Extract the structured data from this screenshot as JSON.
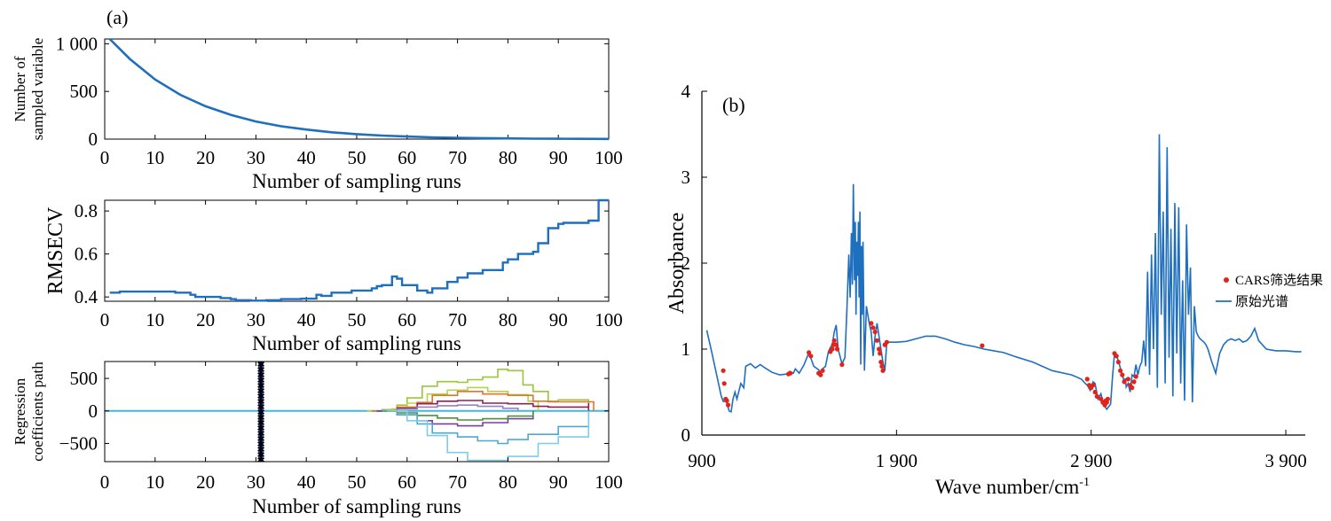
{
  "figure": {
    "panel_a_label": "(a)",
    "panel_b_label": "(b)"
  },
  "colors": {
    "main_blue": "#1f6fbf",
    "marker_red": "#e2231a",
    "star_blue": "#1a2f9c",
    "zero_line": "#3fb8e6"
  },
  "chart_data": [
    {
      "id": "a1",
      "type": "line",
      "xlabel": "Number of sampling runs",
      "ylabel_lines": [
        "Number of",
        "sampled variable"
      ],
      "xlim": [
        0,
        100
      ],
      "ylim": [
        0,
        1050
      ],
      "xticks": [
        0,
        10,
        20,
        30,
        40,
        50,
        60,
        70,
        80,
        90,
        100
      ],
      "xtick_labels": [
        "0",
        "10",
        "20",
        "30",
        "40",
        "50",
        "60",
        "70",
        "80",
        "90",
        "100"
      ],
      "yticks": [
        0,
        500,
        1000
      ],
      "ytick_labels": [
        "0",
        "500",
        "1 000"
      ],
      "series": [
        {
          "x": [
            1,
            5,
            10,
            15,
            20,
            25,
            30,
            35,
            40,
            45,
            50,
            55,
            60,
            65,
            70,
            75,
            80,
            85,
            90,
            95,
            100
          ],
          "y": [
            1050,
            840,
            625,
            465,
            345,
            255,
            185,
            135,
            100,
            72,
            52,
            37,
            27,
            19,
            14,
            10,
            7,
            5,
            4,
            3,
            2
          ]
        }
      ]
    },
    {
      "id": "a2",
      "type": "line",
      "xlabel": "Number of sampling runs",
      "ylabel": "RMSECV",
      "xlim": [
        0,
        100
      ],
      "ylim": [
        0.38,
        0.85
      ],
      "xticks": [
        0,
        10,
        20,
        30,
        40,
        50,
        60,
        70,
        80,
        90,
        100
      ],
      "xtick_labels": [
        "0",
        "10",
        "20",
        "30",
        "40",
        "50",
        "60",
        "70",
        "80",
        "90",
        "100"
      ],
      "yticks": [
        0.4,
        0.6,
        0.8
      ],
      "ytick_labels": [
        "0.4",
        "0.6",
        "0.8"
      ],
      "series": [
        {
          "x": [
            1,
            3,
            10,
            14,
            17,
            18,
            23,
            25,
            26,
            29,
            32,
            35,
            39,
            42,
            43,
            45,
            49,
            53,
            54,
            55,
            57,
            58,
            59,
            62,
            64,
            65,
            68,
            70,
            72,
            75,
            79,
            80,
            82,
            85,
            86,
            88,
            90,
            91,
            96,
            98,
            100
          ],
          "y": [
            0.42,
            0.425,
            0.425,
            0.42,
            0.41,
            0.4,
            0.395,
            0.39,
            0.385,
            0.383,
            0.385,
            0.39,
            0.392,
            0.41,
            0.405,
            0.42,
            0.43,
            0.44,
            0.45,
            0.455,
            0.495,
            0.485,
            0.455,
            0.43,
            0.42,
            0.44,
            0.47,
            0.49,
            0.51,
            0.525,
            0.56,
            0.575,
            0.6,
            0.61,
            0.65,
            0.72,
            0.74,
            0.745,
            0.755,
            0.85,
            0.85
          ]
        }
      ]
    },
    {
      "id": "a3",
      "type": "line",
      "xlabel": "Number of sampling runs",
      "ylabel_lines": [
        "Regression",
        "coefficients path"
      ],
      "xlim": [
        0,
        100
      ],
      "ylim": [
        -780,
        760
      ],
      "xticks": [
        0,
        10,
        20,
        30,
        40,
        50,
        60,
        70,
        80,
        90,
        100
      ],
      "xtick_labels": [
        "0",
        "10",
        "20",
        "30",
        "40",
        "50",
        "60",
        "70",
        "80",
        "90",
        "100"
      ],
      "yticks": [
        -500,
        0,
        500
      ],
      "ytick_labels": [
        "−500",
        "0",
        "500"
      ],
      "marker_run": 31,
      "series": [
        {
          "color": "#9bc53d",
          "x": [
            52,
            55,
            58,
            60,
            63,
            66,
            70,
            72,
            75,
            78,
            80,
            83,
            85,
            88,
            90,
            96
          ],
          "y": [
            0,
            20,
            90,
            200,
            380,
            450,
            440,
            480,
            520,
            640,
            620,
            400,
            300,
            150,
            170,
            170
          ]
        },
        {
          "color": "#b3d44a",
          "x": [
            52,
            57,
            60,
            64,
            68,
            72,
            76,
            80,
            84,
            86
          ],
          "y": [
            0,
            30,
            120,
            260,
            320,
            360,
            300,
            250,
            150,
            80
          ]
        },
        {
          "color": "#e0752f",
          "x": [
            53,
            58,
            62,
            65,
            70,
            75,
            80,
            85,
            88,
            93,
            97
          ],
          "y": [
            0,
            60,
            130,
            240,
            300,
            260,
            240,
            150,
            140,
            140,
            140
          ]
        },
        {
          "color": "#8b2252",
          "x": [
            54,
            58,
            62,
            66,
            70,
            75,
            80,
            85,
            88,
            96
          ],
          "y": [
            0,
            40,
            110,
            150,
            160,
            120,
            110,
            70,
            60,
            120
          ]
        },
        {
          "color": "#9b7fbf",
          "x": [
            55,
            58,
            62,
            66,
            70,
            74,
            79,
            82
          ],
          "y": [
            0,
            30,
            60,
            80,
            90,
            70,
            40,
            20
          ]
        },
        {
          "color": "#7b3f9e",
          "x": [
            54,
            58,
            62,
            65,
            70,
            75,
            80,
            85
          ],
          "y": [
            0,
            -60,
            -150,
            -200,
            -230,
            -180,
            -120,
            -60
          ]
        },
        {
          "color": "#4d8f3a",
          "x": [
            55,
            58,
            62,
            66,
            70,
            75,
            80,
            85
          ],
          "y": [
            0,
            -30,
            -70,
            -110,
            -140,
            -120,
            -80,
            -40
          ]
        },
        {
          "color": "#4fa8d0",
          "x": [
            55,
            58,
            62,
            65,
            70,
            74,
            78,
            80,
            84,
            90,
            96
          ],
          "y": [
            0,
            -60,
            -200,
            -340,
            -400,
            -460,
            -500,
            -440,
            -360,
            -240,
            -240
          ]
        },
        {
          "color": "#7fcce8",
          "x": [
            56,
            60,
            64,
            68,
            72,
            76,
            80,
            86,
            90,
            96
          ],
          "y": [
            0,
            -150,
            -380,
            -640,
            -760,
            -760,
            -700,
            -500,
            -400,
            -400
          ]
        }
      ]
    },
    {
      "id": "b",
      "type": "line",
      "xlabel": "Wave number/cm",
      "xlabel_sup": "-1",
      "ylabel": "Absorbance",
      "xlim": [
        900,
        4000
      ],
      "ylim": [
        0,
        4
      ],
      "xticks": [
        900,
        1900,
        2900,
        3900
      ],
      "xtick_labels": [
        "900",
        "1 900",
        "2 900",
        "3 900"
      ],
      "yticks": [
        0,
        1,
        2,
        3,
        4
      ],
      "ytick_labels": [
        "0",
        "1",
        "2",
        "3",
        "4"
      ],
      "legend": {
        "position": "right",
        "entries": [
          "CARS筛选结果",
          "原始光谱"
        ]
      },
      "spectrum": {
        "x": [
          925,
          950,
          1000,
          1010,
          1025,
          1040,
          1050,
          1060,
          1070,
          1080,
          1100,
          1115,
          1125,
          1150,
          1175,
          1200,
          1225,
          1260,
          1300,
          1340,
          1350,
          1370,
          1380,
          1400,
          1425,
          1450,
          1475,
          1500,
          1510,
          1515,
          1525,
          1535,
          1550,
          1560,
          1570,
          1580,
          1590,
          1600,
          1620,
          1635,
          1645,
          1655,
          1662,
          1668,
          1673,
          1678,
          1684,
          1688,
          1692,
          1696,
          1700,
          1704,
          1708,
          1712,
          1716,
          1720,
          1724,
          1728,
          1735,
          1745,
          1760,
          1770,
          1780,
          1790,
          1800,
          1810,
          1820,
          1830,
          1840,
          1850,
          1900,
          1950,
          2000,
          2050,
          2100,
          2150,
          2200,
          2250,
          2300,
          2350,
          2400,
          2450,
          2500,
          2600,
          2700,
          2800,
          2850,
          2870,
          2880,
          2895,
          2900,
          2910,
          2920,
          2935,
          2950,
          2965,
          2980,
          3000,
          3010,
          3020,
          3030,
          3040,
          3050,
          3060,
          3070,
          3075,
          3080,
          3090,
          3100,
          3110,
          3120,
          3130,
          3140,
          3150,
          3160,
          3170,
          3180,
          3190,
          3200,
          3210,
          3220,
          3230,
          3240,
          3250,
          3260,
          3270,
          3280,
          3290,
          3300,
          3310,
          3320,
          3330,
          3340,
          3350,
          3360,
          3370,
          3380,
          3390,
          3400,
          3410,
          3420,
          3430,
          3440,
          3450,
          3460,
          3470,
          3480,
          3490,
          3500,
          3520,
          3540,
          3560,
          3580,
          3600,
          3620,
          3640,
          3660,
          3680,
          3700,
          3720,
          3740,
          3760,
          3800,
          3850,
          3900,
          3950,
          3980
        ],
        "y": [
          1.22,
          0.97,
          0.45,
          0.39,
          0.4,
          0.28,
          0.27,
          0.42,
          0.5,
          0.42,
          0.6,
          0.55,
          0.8,
          0.83,
          0.78,
          0.82,
          0.78,
          0.73,
          0.7,
          0.71,
          0.74,
          0.72,
          0.77,
          0.72,
          0.82,
          0.96,
          0.8,
          0.76,
          0.72,
          0.76,
          0.78,
          0.8,
          0.97,
          1.02,
          1.05,
          1.2,
          1.28,
          1.0,
          0.83,
          0.9,
          1.45,
          2.1,
          1.6,
          2.35,
          1.75,
          2.92,
          1.8,
          2.48,
          1.4,
          2.25,
          1.85,
          2.48,
          1.6,
          2.6,
          0.82,
          2.2,
          1.4,
          2.25,
          0.75,
          1.5,
          1.3,
          1.2,
          0.92,
          1.15,
          1.3,
          1.15,
          1.0,
          0.85,
          0.75,
          1.08,
          1.08,
          1.09,
          1.12,
          1.15,
          1.15,
          1.12,
          1.08,
          1.05,
          1.03,
          1.0,
          0.98,
          0.96,
          0.92,
          0.85,
          0.75,
          0.7,
          0.65,
          0.6,
          0.58,
          0.52,
          0.55,
          0.62,
          0.6,
          0.42,
          0.48,
          0.35,
          0.3,
          0.36,
          0.68,
          0.95,
          0.93,
          0.86,
          0.78,
          0.7,
          0.62,
          0.66,
          0.56,
          0.6,
          0.5,
          0.7,
          0.68,
          0.82,
          0.7,
          0.8,
          0.85,
          1.1,
          0.8,
          1.9,
          0.7,
          2.1,
          1.0,
          2.35,
          0.55,
          3.5,
          1.4,
          2.6,
          0.6,
          3.35,
          0.9,
          2.4,
          0.45,
          2.7,
          0.95,
          2.65,
          0.6,
          1.8,
          0.4,
          2.45,
          1.4,
          1.95,
          0.38,
          1.5,
          1.2,
          1.15,
          1.12,
          1.1,
          1.08,
          1.05,
          1.0,
          0.85,
          0.72,
          0.95,
          1.05,
          1.1,
          1.12,
          1.1,
          1.12,
          1.08,
          1.1,
          1.15,
          1.24,
          1.1,
          1.0,
          0.98,
          0.98,
          0.97,
          0.97
        ]
      },
      "selected_points": {
        "x": [
          1010,
          1015,
          1022,
          1028,
          1035,
          1345,
          1355,
          1450,
          1460,
          1500,
          1510,
          1520,
          1560,
          1570,
          1575,
          1580,
          1590,
          1595,
          1620,
          1770,
          1780,
          1790,
          1800,
          1810,
          1815,
          1820,
          1825,
          1830,
          1840,
          1850,
          2340,
          2880,
          2890,
          2900,
          2910,
          2920,
          2930,
          2950,
          2960,
          2970,
          2975,
          2980,
          2985,
          3020,
          3030,
          3040,
          3050,
          3060,
          3070,
          3090,
          3100,
          3110,
          3120,
          3130
        ],
        "y": [
          0.75,
          0.6,
          0.42,
          0.4,
          0.35,
          0.71,
          0.72,
          0.96,
          0.92,
          0.72,
          0.7,
          0.75,
          0.97,
          1.0,
          1.05,
          1.1,
          1.05,
          1.0,
          0.82,
          1.3,
          1.25,
          1.2,
          1.1,
          1.0,
          0.95,
          0.85,
          0.8,
          0.75,
          1.05,
          1.08,
          1.04,
          0.65,
          0.58,
          0.55,
          0.58,
          0.5,
          0.45,
          0.42,
          0.38,
          0.35,
          0.4,
          0.38,
          0.42,
          0.95,
          0.92,
          0.85,
          0.75,
          0.7,
          0.62,
          0.65,
          0.58,
          0.55,
          0.62,
          0.68
        ]
      }
    }
  ]
}
